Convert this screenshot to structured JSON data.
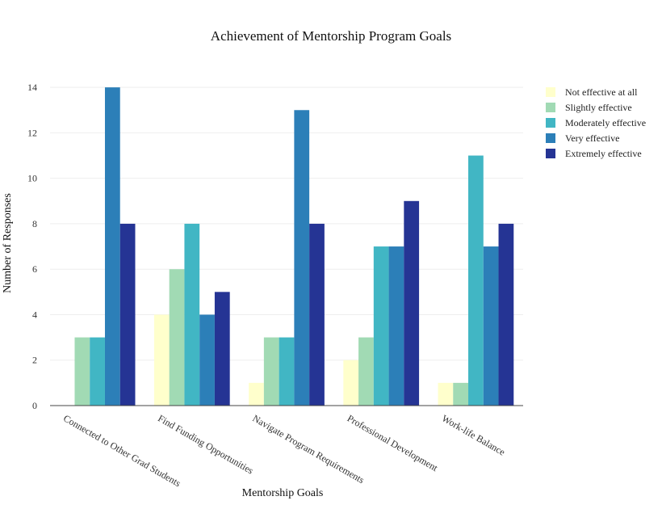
{
  "chart_data": {
    "type": "bar",
    "title": "Achievement of Mentorship Program Goals",
    "xlabel": "Mentorship Goals",
    "ylabel": "Number of Responses",
    "ylim": [
      0,
      15
    ],
    "yticks": [
      0,
      2,
      4,
      6,
      8,
      10,
      12,
      14
    ],
    "grid": true,
    "legend_position": "top-right",
    "categories": [
      "Connected to Other Grad Students",
      "Find Funding Opportunities",
      "Navigate Program Requirements",
      "Professional Development",
      "Work-life Balance"
    ],
    "series": [
      {
        "name": "Not effective at all",
        "color": "#ffffcc",
        "values": [
          0,
          4,
          1,
          2,
          1
        ]
      },
      {
        "name": "Slightly effective",
        "color": "#a1dab4",
        "values": [
          3,
          6,
          3,
          3,
          1
        ]
      },
      {
        "name": "Moderately effective",
        "color": "#41b6c4",
        "values": [
          3,
          8,
          3,
          7,
          11
        ]
      },
      {
        "name": "Very effective",
        "color": "#2c7fb8",
        "values": [
          14,
          4,
          13,
          7,
          7
        ]
      },
      {
        "name": "Extremely effective",
        "color": "#253494",
        "values": [
          8,
          5,
          8,
          9,
          8
        ]
      }
    ]
  }
}
